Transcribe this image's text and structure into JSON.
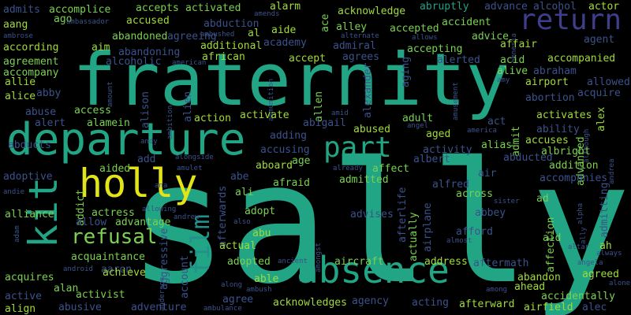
{
  "palette": {
    "background": "#000000",
    "dark_purple": "#440154",
    "purple": "#482878",
    "indigo": "#3e4989",
    "blue": "#31688e",
    "teal_blue": "#26828e",
    "teal": "#1f9e89",
    "green": "#35b779",
    "light_green": "#6ece58",
    "lime": "#b5de2b",
    "yellow": "#fde725"
  },
  "words": [
    {
      "text": "sally",
      "size": 212,
      "color": "#21a585"
    },
    {
      "text": "fraternity",
      "size": 92,
      "color": "#21a585"
    },
    {
      "text": "departure",
      "size": 56,
      "color": "#21a585"
    },
    {
      "text": "absence",
      "size": 46,
      "color": "#21a585"
    },
    {
      "text": "holly",
      "size": 50,
      "color": "#e2e418"
    },
    {
      "text": "kit",
      "size": 50,
      "color": "#21a585",
      "vertical": true
    },
    {
      "text": "part",
      "size": 36,
      "color": "#21a585"
    },
    {
      "text": "return",
      "size": 36,
      "color": "#3e3e8c"
    },
    {
      "text": "film",
      "size": 32,
      "color": "#22908c",
      "vertical": true
    },
    {
      "text": "refusal",
      "size": 26,
      "color": "#7ad151"
    },
    {
      "text": "admits",
      "size": 13,
      "color": "#3b528b"
    },
    {
      "text": "accomplice",
      "size": 13,
      "color": "#7ad151"
    },
    {
      "text": "accepts",
      "size": 13,
      "color": "#7ad151"
    },
    {
      "text": "activated",
      "size": 13,
      "color": "#7ad151"
    },
    {
      "text": "alarm",
      "size": 13,
      "color": "#a0da39"
    },
    {
      "text": "acknowledge",
      "size": 13,
      "color": "#a0da39"
    },
    {
      "text": "abruptly",
      "size": 13,
      "color": "#1fa188"
    },
    {
      "text": "advance",
      "size": 13,
      "color": "#3b528b"
    },
    {
      "text": "alcohol",
      "size": 13,
      "color": "#3b528b"
    },
    {
      "text": "actor",
      "size": 13,
      "color": "#a0da39"
    },
    {
      "text": "ago",
      "size": 13,
      "color": "#7ad151"
    },
    {
      "text": "accused",
      "size": 13,
      "color": "#a0da39"
    },
    {
      "text": "abduction",
      "size": 13,
      "color": "#3b528b"
    },
    {
      "text": "ace",
      "size": 13,
      "color": "#7ad151",
      "vertical": true
    },
    {
      "text": "aang",
      "size": 13,
      "color": "#a0da39"
    },
    {
      "text": "ambassador",
      "size": 9,
      "color": "#3b528b"
    },
    {
      "text": "abandoned",
      "size": 13,
      "color": "#7ad151"
    },
    {
      "text": "agreeing",
      "size": 13,
      "color": "#3b528b"
    },
    {
      "text": "ambushed",
      "size": 9,
      "color": "#3b528b"
    },
    {
      "text": "al",
      "size": 13,
      "color": "#a0da39"
    },
    {
      "text": "aide",
      "size": 13,
      "color": "#a0da39"
    },
    {
      "text": "alley",
      "size": 13,
      "color": "#7ad151"
    },
    {
      "text": "accepted",
      "size": 13,
      "color": "#7ad151"
    },
    {
      "text": "accident",
      "size": 13,
      "color": "#7ad151"
    },
    {
      "text": "agent",
      "size": 13,
      "color": "#3b528b"
    },
    {
      "text": "ambrose",
      "size": 9,
      "color": "#3b528b"
    },
    {
      "text": "alternate",
      "size": 9,
      "color": "#3b528b"
    },
    {
      "text": "allows",
      "size": 9,
      "color": "#3b528b"
    },
    {
      "text": "advice",
      "size": 13,
      "color": "#7ad151"
    },
    {
      "text": "amnesia",
      "size": 9,
      "color": "#3b528b",
      "vertical": true
    },
    {
      "text": "according",
      "size": 13,
      "color": "#a0da39"
    },
    {
      "text": "aim",
      "size": 13,
      "color": "#a0da39"
    },
    {
      "text": "abandoning",
      "size": 13,
      "color": "#3b528b"
    },
    {
      "text": "additional",
      "size": 13,
      "color": "#a0da39"
    },
    {
      "text": "academy",
      "size": 13,
      "color": "#3b528b"
    },
    {
      "text": "admiral",
      "size": 13,
      "color": "#3b528b"
    },
    {
      "text": "accepting",
      "size": 13,
      "color": "#7ad151"
    },
    {
      "text": "affair",
      "size": 13,
      "color": "#a0da39"
    },
    {
      "text": "agreement",
      "size": 13,
      "color": "#7ad151"
    },
    {
      "text": "alcoholic",
      "size": 13,
      "color": "#3b528b"
    },
    {
      "text": "american",
      "size": 9,
      "color": "#3b528b"
    },
    {
      "text": "african",
      "size": 13,
      "color": "#a0da39"
    },
    {
      "text": "accept",
      "size": 13,
      "color": "#a0da39"
    },
    {
      "text": "agrees",
      "size": 13,
      "color": "#3b528b"
    },
    {
      "text": "aging",
      "size": 13,
      "color": "#3b528b",
      "vertical": true
    },
    {
      "text": "alerted",
      "size": 13,
      "color": "#3b528b"
    },
    {
      "text": "acid",
      "size": 13,
      "color": "#7ad151"
    },
    {
      "text": "accompanied",
      "size": 13,
      "color": "#a0da39"
    },
    {
      "text": "accompany",
      "size": 13,
      "color": "#7ad151"
    },
    {
      "text": "alexander",
      "size": 13,
      "color": "#3b528b",
      "vertical": true
    },
    {
      "text": "alive",
      "size": 13,
      "color": "#7ad151"
    },
    {
      "text": "abraham",
      "size": 13,
      "color": "#3b528b"
    },
    {
      "text": "allie",
      "size": 13,
      "color": "#a0da39"
    },
    {
      "text": "amy",
      "size": 9,
      "color": "#3b528b"
    },
    {
      "text": "airport",
      "size": 13,
      "color": "#a0da39"
    },
    {
      "text": "allowed",
      "size": 13,
      "color": "#3b528b"
    },
    {
      "text": "alice",
      "size": 13,
      "color": "#a0da39"
    },
    {
      "text": "abby",
      "size": 13,
      "color": "#3b528b"
    },
    {
      "text": "amount",
      "size": 9,
      "color": "#3b528b",
      "vertical": true
    },
    {
      "text": "alison",
      "size": 13,
      "color": "#3b528b",
      "vertical": true
    },
    {
      "text": "alien",
      "size": 13,
      "color": "#3b528b",
      "vertical": true
    },
    {
      "text": "ammunition",
      "size": 9,
      "color": "#3b528b",
      "vertical": true
    },
    {
      "text": "allen",
      "size": 13,
      "color": "#7ad151",
      "vertical": true
    },
    {
      "text": "amusement",
      "size": 9,
      "color": "#3b528b",
      "vertical": true
    },
    {
      "text": "abortion",
      "size": 13,
      "color": "#3b528b"
    },
    {
      "text": "acquire",
      "size": 13,
      "color": "#3b528b"
    },
    {
      "text": "abuse",
      "size": 13,
      "color": "#3b528b"
    },
    {
      "text": "access",
      "size": 13,
      "color": "#7ad151"
    },
    {
      "text": "ambition",
      "size": 9,
      "color": "#3b528b",
      "vertical": true
    },
    {
      "text": "action",
      "size": 13,
      "color": "#a0da39"
    },
    {
      "text": "activate",
      "size": 13,
      "color": "#a0da39"
    },
    {
      "text": "amid",
      "size": 9,
      "color": "#3b528b"
    },
    {
      "text": "adult",
      "size": 13,
      "color": "#7ad151"
    },
    {
      "text": "act",
      "size": 13,
      "color": "#3b528b"
    },
    {
      "text": "activates",
      "size": 13,
      "color": "#a0da39"
    },
    {
      "text": "alex",
      "size": 13,
      "color": "#a0da39",
      "vertical": true
    },
    {
      "text": "alert",
      "size": 13,
      "color": "#3b528b"
    },
    {
      "text": "alamein",
      "size": 13,
      "color": "#7ad151"
    },
    {
      "text": "abigail",
      "size": 13,
      "color": "#3b528b"
    },
    {
      "text": "angel",
      "size": 9,
      "color": "#3b528b"
    },
    {
      "text": "america",
      "size": 9,
      "color": "#3b528b"
    },
    {
      "text": "ability",
      "size": 13,
      "color": "#3b528b"
    },
    {
      "text": "abused",
      "size": 13,
      "color": "#a0da39"
    },
    {
      "text": "aged",
      "size": 13,
      "color": "#a0da39"
    },
    {
      "text": "admit",
      "size": 13,
      "color": "#7ad151",
      "vertical": true
    },
    {
      "text": "although",
      "size": 9,
      "color": "#3b528b",
      "vertical": true
    },
    {
      "text": "adding",
      "size": 13,
      "color": "#3b528b"
    },
    {
      "text": "accuses",
      "size": 13,
      "color": "#a0da39"
    },
    {
      "text": "advanced",
      "size": 13,
      "color": "#7ad151",
      "vertical": true
    },
    {
      "text": "abducts",
      "size": 13,
      "color": "#3b528b"
    },
    {
      "text": "andy",
      "size": 9,
      "color": "#3b528b"
    },
    {
      "text": "accusing",
      "size": 13,
      "color": "#3b528b"
    },
    {
      "text": "alias",
      "size": 13,
      "color": "#7ad151"
    },
    {
      "text": "albright",
      "size": 13,
      "color": "#7ad151"
    },
    {
      "text": "age",
      "size": 13,
      "color": "#7ad151"
    },
    {
      "text": "activity",
      "size": 13,
      "color": "#3b528b"
    },
    {
      "text": "alongside",
      "size": 9,
      "color": "#3b528b"
    },
    {
      "text": "albert",
      "size": 13,
      "color": "#3b528b"
    },
    {
      "text": "abducted",
      "size": 13,
      "color": "#3b528b"
    },
    {
      "text": "addition",
      "size": 13,
      "color": "#7ad151"
    },
    {
      "text": "andrea",
      "size": 9,
      "color": "#3b528b",
      "vertical": true
    },
    {
      "text": "adoptive",
      "size": 13,
      "color": "#3b528b"
    },
    {
      "text": "aided",
      "size": 13,
      "color": "#7ad151"
    },
    {
      "text": "add",
      "size": 13,
      "color": "#3b528b"
    },
    {
      "text": "amulet",
      "size": 9,
      "color": "#3b528b"
    },
    {
      "text": "abe",
      "size": 13,
      "color": "#3b528b"
    },
    {
      "text": "aboard",
      "size": 13,
      "color": "#a0da39"
    },
    {
      "text": "already",
      "size": 9,
      "color": "#3b528b"
    },
    {
      "text": "affect",
      "size": 13,
      "color": "#7ad151"
    },
    {
      "text": "accompanies",
      "size": 13,
      "color": "#3b528b"
    },
    {
      "text": "admitting",
      "size": 13,
      "color": "#3b528b",
      "vertical": true
    },
    {
      "text": "admitted",
      "size": 13,
      "color": "#7ad151"
    },
    {
      "text": "afraid",
      "size": 13,
      "color": "#7ad151"
    },
    {
      "text": "air",
      "size": 13,
      "color": "#3b528b"
    },
    {
      "text": "alfred",
      "size": 13,
      "color": "#3b528b"
    },
    {
      "text": "andie",
      "size": 9,
      "color": "#3b528b"
    },
    {
      "text": "addict",
      "size": 13,
      "color": "#7ad151",
      "vertical": true
    },
    {
      "text": "ana",
      "size": 9,
      "color": "#3b528b"
    },
    {
      "text": "afterwards",
      "size": 13,
      "color": "#3b528b",
      "vertical": true
    },
    {
      "text": "ali",
      "size": 13,
      "color": "#7ad151"
    },
    {
      "text": "afterlife",
      "size": 13,
      "color": "#3b528b",
      "vertical": true
    },
    {
      "text": "across",
      "size": 13,
      "color": "#7ad151"
    },
    {
      "text": "ad",
      "size": 13,
      "color": "#7ad151"
    },
    {
      "text": "alpha",
      "size": 9,
      "color": "#3b528b",
      "vertical": true
    },
    {
      "text": "actress",
      "size": 13,
      "color": "#7ad151"
    },
    {
      "text": "allowing",
      "size": 9,
      "color": "#3b528b"
    },
    {
      "text": "adopt",
      "size": 13,
      "color": "#7ad151"
    },
    {
      "text": "actually",
      "size": 13,
      "color": "#7ad151",
      "vertical": true
    },
    {
      "text": "airplane",
      "size": 13,
      "color": "#3b528b",
      "vertical": true
    },
    {
      "text": "abbey",
      "size": 13,
      "color": "#3b528b"
    },
    {
      "text": "sister",
      "size": 9,
      "color": "#3b528b"
    },
    {
      "text": "alliance",
      "size": 13,
      "color": "#7ad151"
    },
    {
      "text": "allow",
      "size": 13,
      "color": "#3b528b"
    },
    {
      "text": "advantage",
      "size": 13,
      "color": "#7ad151"
    },
    {
      "text": "andrew",
      "size": 9,
      "color": "#3b528b"
    },
    {
      "text": "also",
      "size": 9,
      "color": "#3b528b"
    },
    {
      "text": "affection",
      "size": 13,
      "color": "#7ad151",
      "vertical": true
    },
    {
      "text": "ally",
      "size": 9,
      "color": "#3b528b",
      "vertical": true
    },
    {
      "text": "adam",
      "size": 9,
      "color": "#3b528b",
      "vertical": true
    },
    {
      "text": "aggressive",
      "size": 13,
      "color": "#3b528b",
      "vertical": true
    },
    {
      "text": "abu",
      "size": 13,
      "color": "#a0da39"
    },
    {
      "text": "advises",
      "size": 13,
      "color": "#3b528b"
    },
    {
      "text": "afford",
      "size": 13,
      "color": "#3b528b"
    },
    {
      "text": "aid",
      "size": 13,
      "color": "#7ad151"
    },
    {
      "text": "ah",
      "size": 13,
      "color": "#a0da39"
    },
    {
      "text": "actual",
      "size": 13,
      "color": "#a0da39"
    },
    {
      "text": "amongst",
      "size": 9,
      "color": "#3b528b",
      "vertical": true
    },
    {
      "text": "almost",
      "size": 9,
      "color": "#3b528b"
    },
    {
      "text": "altar",
      "size": 9,
      "color": "#3b528b"
    },
    {
      "text": "acquaintance",
      "size": 13,
      "color": "#7ad151"
    },
    {
      "text": "always",
      "size": 9,
      "color": "#3b528b"
    },
    {
      "text": "account",
      "size": 13,
      "color": "#3b528b",
      "vertical": true
    },
    {
      "text": "aircraft",
      "size": 13,
      "color": "#7ad151"
    },
    {
      "text": "address",
      "size": 13,
      "color": "#a0da39"
    },
    {
      "text": "aftermath",
      "size": 13,
      "color": "#3b528b"
    },
    {
      "text": "angela",
      "size": 9,
      "color": "#3b528b"
    },
    {
      "text": "aaron",
      "size": 13,
      "color": "#3b528b"
    },
    {
      "text": "adopted",
      "size": 13,
      "color": "#7ad151"
    },
    {
      "text": "ancient",
      "size": 9,
      "color": "#3b528b"
    },
    {
      "text": "agreed",
      "size": 13,
      "color": "#a0da39"
    },
    {
      "text": "android",
      "size": 9,
      "color": "#3b528b"
    },
    {
      "text": "acquires",
      "size": 13,
      "color": "#7ad151"
    },
    {
      "text": "achieve",
      "size": 13,
      "color": "#a0da39"
    },
    {
      "text": "able",
      "size": 13,
      "color": "#a0da39"
    },
    {
      "text": "abandon",
      "size": 13,
      "color": "#a0da39"
    },
    {
      "text": "alone",
      "size": 9,
      "color": "#3b528b"
    },
    {
      "text": "alan",
      "size": 13,
      "color": "#7ad151"
    },
    {
      "text": "anderson",
      "size": 9,
      "color": "#3b528b",
      "vertical": true
    },
    {
      "text": "along",
      "size": 9,
      "color": "#3b528b"
    },
    {
      "text": "ahead",
      "size": 13,
      "color": "#a0da39"
    },
    {
      "text": "active",
      "size": 13,
      "color": "#3b528b"
    },
    {
      "text": "activist",
      "size": 13,
      "color": "#7ad151"
    },
    {
      "text": "ambush",
      "size": 9,
      "color": "#3b528b"
    },
    {
      "text": "among",
      "size": 9,
      "color": "#3b528b"
    },
    {
      "text": "accidentally",
      "size": 13,
      "color": "#7ad151"
    },
    {
      "text": "align",
      "size": 13,
      "color": "#a0da39"
    },
    {
      "text": "abusive",
      "size": 13,
      "color": "#3b528b"
    },
    {
      "text": "adventure",
      "size": 13,
      "color": "#3b528b"
    },
    {
      "text": "agree",
      "size": 13,
      "color": "#3b528b"
    },
    {
      "text": "acknowledges",
      "size": 13,
      "color": "#a0da39"
    },
    {
      "text": "agency",
      "size": 13,
      "color": "#3b528b"
    },
    {
      "text": "acting",
      "size": 13,
      "color": "#3b528b"
    },
    {
      "text": "afterward",
      "size": 13,
      "color": "#a0da39"
    },
    {
      "text": "airfield",
      "size": 13,
      "color": "#a0da39"
    },
    {
      "text": "alec",
      "size": 13,
      "color": "#3b528b"
    },
    {
      "text": "ambulance",
      "size": 9,
      "color": "#3b528b"
    },
    {
      "text": "amends",
      "size": 9,
      "color": "#3b528b"
    }
  ]
}
